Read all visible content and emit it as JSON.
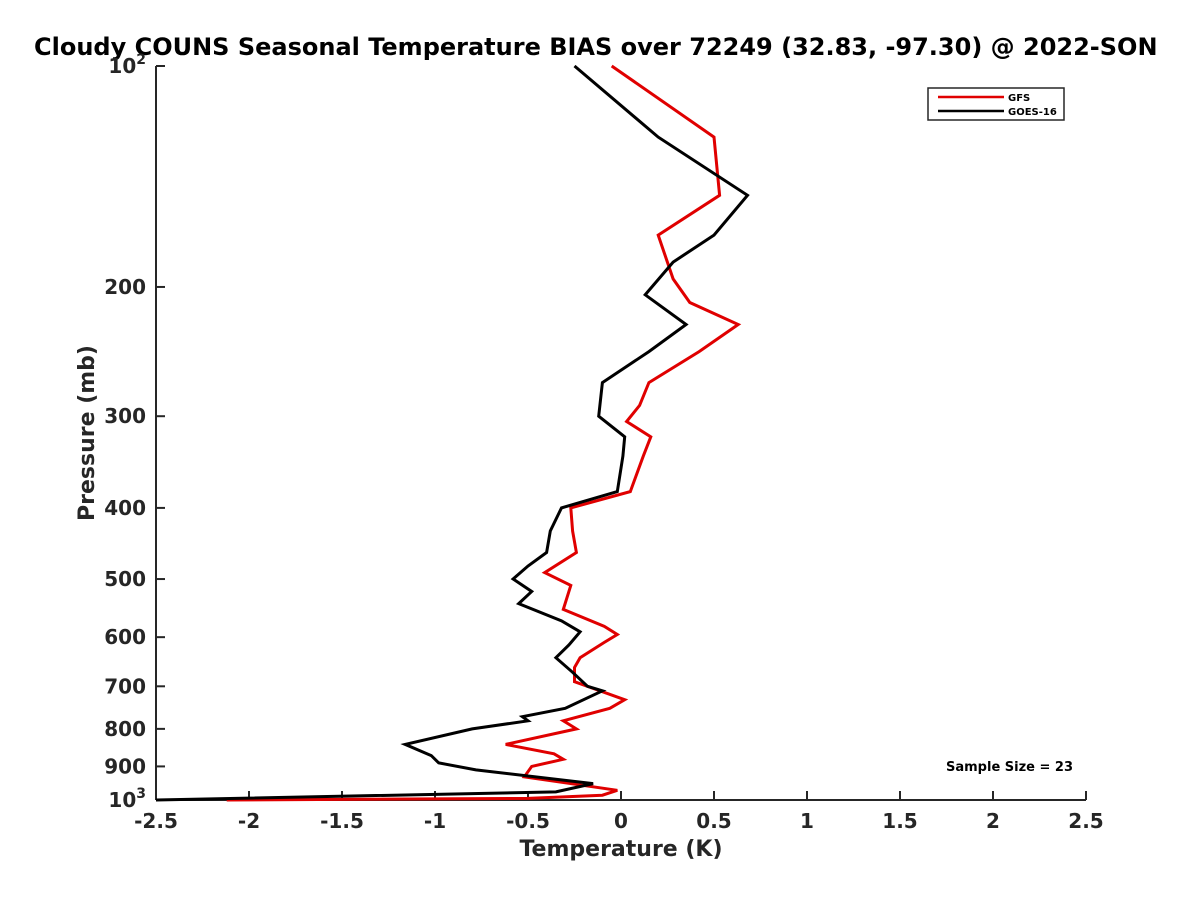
{
  "chart_data": {
    "type": "line",
    "title": "Cloudy COUNS Seasonal Temperature BIAS over 72249 (32.83, -97.30) @ 2022-SON",
    "xlabel": "Temperature (K)",
    "ylabel": "Pressure (mb)",
    "xlim": [
      -2.5,
      2.5
    ],
    "ylim": [
      100,
      1000
    ],
    "yscale": "log",
    "yreversed": true,
    "x_ticks": [
      "-2.5",
      "-2",
      "-1.5",
      "-1",
      "-0.5",
      "0",
      "0.5",
      "1",
      "1.5",
      "2",
      "2.5"
    ],
    "y_ticks": [
      {
        "value": 100,
        "base": "10",
        "exp": "2"
      },
      {
        "value": 200,
        "label": "200"
      },
      {
        "value": 300,
        "label": "300"
      },
      {
        "value": 400,
        "label": "400"
      },
      {
        "value": 500,
        "label": "500"
      },
      {
        "value": 600,
        "label": "600"
      },
      {
        "value": 700,
        "label": "700"
      },
      {
        "value": 800,
        "label": "800"
      },
      {
        "value": 900,
        "label": "900"
      },
      {
        "value": 1000,
        "base": "10",
        "exp": "3"
      }
    ],
    "legend_position": "top-right",
    "grid": false,
    "annotation": "Sample Size = 23",
    "series": [
      {
        "name": "GFS",
        "color": "#e00000",
        "points": [
          [
            -0.05,
            100
          ],
          [
            0.5,
            125
          ],
          [
            0.53,
            150
          ],
          [
            0.2,
            170
          ],
          [
            0.28,
            195
          ],
          [
            0.37,
            210
          ],
          [
            0.63,
            225
          ],
          [
            0.42,
            245
          ],
          [
            0.15,
            270
          ],
          [
            0.1,
            290
          ],
          [
            0.03,
            305
          ],
          [
            0.16,
            320
          ],
          [
            0.12,
            340
          ],
          [
            0.05,
            380
          ],
          [
            -0.27,
            400
          ],
          [
            -0.26,
            430
          ],
          [
            -0.24,
            460
          ],
          [
            -0.41,
            490
          ],
          [
            -0.27,
            510
          ],
          [
            -0.31,
            550
          ],
          [
            -0.09,
            580
          ],
          [
            -0.02,
            595
          ],
          [
            -0.09,
            610
          ],
          [
            -0.22,
            640
          ],
          [
            -0.25,
            660
          ],
          [
            -0.25,
            690
          ],
          [
            0.02,
            730
          ],
          [
            -0.06,
            750
          ],
          [
            -0.31,
            780
          ],
          [
            -0.24,
            800
          ],
          [
            -0.62,
            840
          ],
          [
            -0.36,
            865
          ],
          [
            -0.31,
            880
          ],
          [
            -0.48,
            900
          ],
          [
            -0.52,
            930
          ],
          [
            -0.02,
            970
          ],
          [
            -0.1,
            985
          ],
          [
            -0.5,
            995
          ],
          [
            -2.12,
            1000
          ]
        ]
      },
      {
        "name": "GOES-16",
        "color": "#000000",
        "points": [
          [
            -0.25,
            100
          ],
          [
            0.2,
            125
          ],
          [
            0.68,
            150
          ],
          [
            0.5,
            170
          ],
          [
            0.28,
            185
          ],
          [
            0.13,
            205
          ],
          [
            0.35,
            225
          ],
          [
            0.15,
            245
          ],
          [
            -0.1,
            270
          ],
          [
            -0.12,
            300
          ],
          [
            0.02,
            320
          ],
          [
            0.01,
            340
          ],
          [
            -0.02,
            380
          ],
          [
            -0.32,
            400
          ],
          [
            -0.38,
            430
          ],
          [
            -0.4,
            460
          ],
          [
            -0.5,
            480
          ],
          [
            -0.58,
            500
          ],
          [
            -0.48,
            520
          ],
          [
            -0.55,
            540
          ],
          [
            -0.32,
            570
          ],
          [
            -0.22,
            590
          ],
          [
            -0.28,
            615
          ],
          [
            -0.35,
            640
          ],
          [
            -0.26,
            670
          ],
          [
            -0.18,
            700
          ],
          [
            -0.1,
            710
          ],
          [
            -0.3,
            750
          ],
          [
            -0.53,
            770
          ],
          [
            -0.5,
            780
          ],
          [
            -0.8,
            800
          ],
          [
            -1.16,
            840
          ],
          [
            -1.02,
            870
          ],
          [
            -0.98,
            890
          ],
          [
            -0.78,
            910
          ],
          [
            -0.15,
            950
          ],
          [
            -0.35,
            975
          ],
          [
            -2.5,
            1000
          ]
        ]
      }
    ]
  }
}
